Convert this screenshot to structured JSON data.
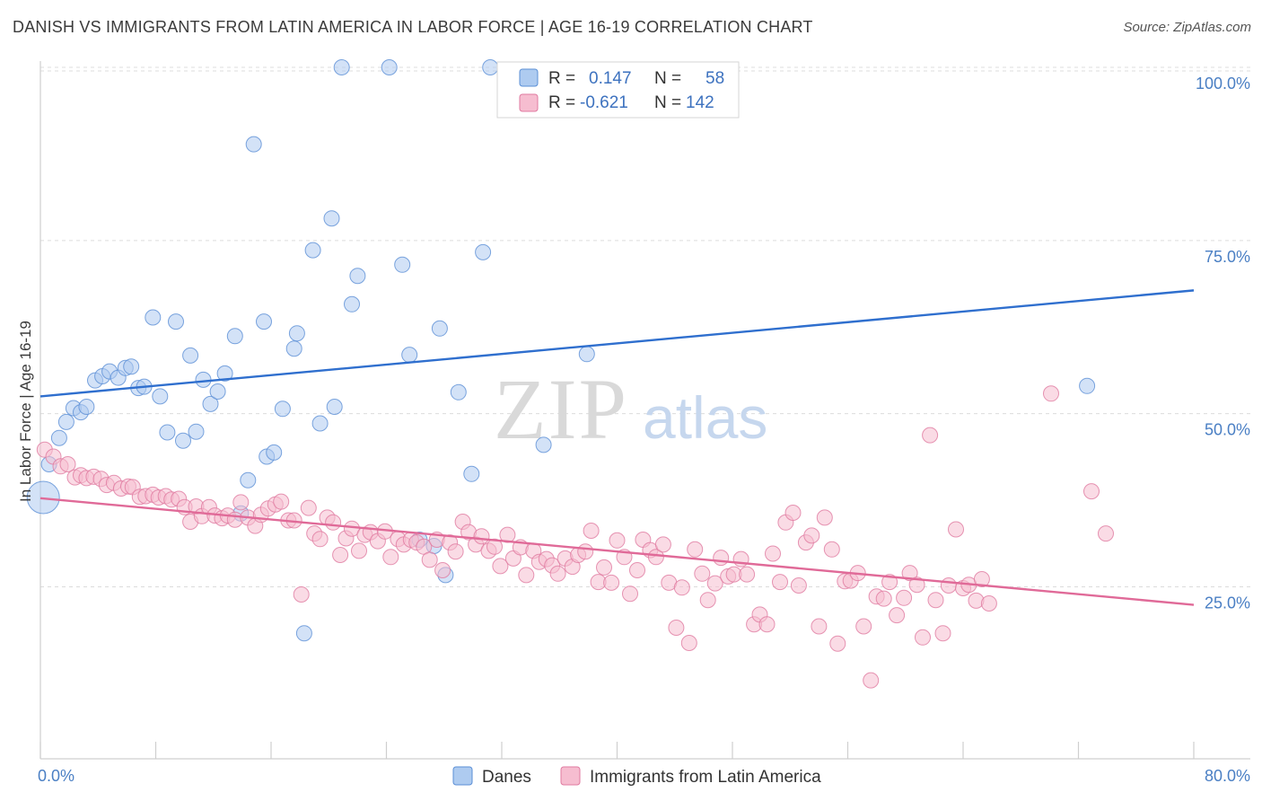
{
  "title": "DANISH VS IMMIGRANTS FROM LATIN AMERICA IN LABOR FORCE | AGE 16-19 CORRELATION CHART",
  "source": "Source: ZipAtlas.com",
  "watermark": {
    "part1": "ZIP",
    "part2": "atlas"
  },
  "legend": {
    "r_label": "R =",
    "n_label": "N =",
    "items": [
      {
        "r": "0.147",
        "n": "58",
        "color": "#5b8fd6",
        "fill": "#aecbf0"
      },
      {
        "r": "-0.621",
        "n": "142",
        "color": "#e07aa0",
        "fill": "#f6bdd0"
      }
    ]
  },
  "bottom_legend": [
    "Danes",
    "Immigrants from Latin America"
  ],
  "chart_data": {
    "type": "scatter",
    "title": "DANISH VS IMMIGRANTS FROM LATIN AMERICA IN LABOR FORCE | AGE 16-19 CORRELATION CHART",
    "xlabel": "",
    "ylabel": "In Labor Force | Age 16-19",
    "xlim": [
      0,
      80
    ],
    "ylim": [
      0,
      105
    ],
    "x_tick_labels": [
      "0.0%",
      "80.0%"
    ],
    "y_ticks": [
      25,
      50,
      75,
      100
    ],
    "y_tick_labels": [
      "25.0%",
      "50.0%",
      "75.0%",
      "100.0%"
    ],
    "grid": true,
    "legend_position": "top-center",
    "series": [
      {
        "name": "Danes",
        "color": "#5b8fd6",
        "fill": "#aecbf0",
        "trend": {
          "x": [
            0,
            80
          ],
          "y": [
            52.5,
            67.8
          ]
        },
        "points": [
          {
            "x": 0.2,
            "y": 37.9,
            "big": true
          },
          {
            "x": 0.6,
            "y": 42.7
          },
          {
            "x": 1.3,
            "y": 46.5
          },
          {
            "x": 1.8,
            "y": 48.8
          },
          {
            "x": 2.3,
            "y": 50.8
          },
          {
            "x": 2.8,
            "y": 50.2
          },
          {
            "x": 3.2,
            "y": 51.0
          },
          {
            "x": 3.8,
            "y": 54.8
          },
          {
            "x": 4.3,
            "y": 55.4
          },
          {
            "x": 4.8,
            "y": 56.1
          },
          {
            "x": 5.4,
            "y": 55.2
          },
          {
            "x": 5.9,
            "y": 56.6
          },
          {
            "x": 6.3,
            "y": 56.8
          },
          {
            "x": 6.8,
            "y": 53.7
          },
          {
            "x": 7.2,
            "y": 53.9
          },
          {
            "x": 7.8,
            "y": 63.9
          },
          {
            "x": 8.3,
            "y": 52.5
          },
          {
            "x": 8.8,
            "y": 47.3
          },
          {
            "x": 9.4,
            "y": 63.3
          },
          {
            "x": 9.9,
            "y": 46.1
          },
          {
            "x": 10.4,
            "y": 58.4
          },
          {
            "x": 10.8,
            "y": 47.4
          },
          {
            "x": 11.3,
            "y": 54.9
          },
          {
            "x": 11.8,
            "y": 51.4
          },
          {
            "x": 12.3,
            "y": 53.2
          },
          {
            "x": 12.8,
            "y": 55.8
          },
          {
            "x": 13.5,
            "y": 61.2
          },
          {
            "x": 13.9,
            "y": 35.6
          },
          {
            "x": 14.4,
            "y": 40.4
          },
          {
            "x": 14.8,
            "y": 88.9
          },
          {
            "x": 15.5,
            "y": 63.3
          },
          {
            "x": 15.7,
            "y": 43.8
          },
          {
            "x": 16.2,
            "y": 44.4
          },
          {
            "x": 16.8,
            "y": 50.7
          },
          {
            "x": 17.6,
            "y": 59.4
          },
          {
            "x": 17.8,
            "y": 61.6
          },
          {
            "x": 18.3,
            "y": 18.3
          },
          {
            "x": 18.9,
            "y": 73.6
          },
          {
            "x": 19.4,
            "y": 48.6
          },
          {
            "x": 20.2,
            "y": 78.2
          },
          {
            "x": 20.4,
            "y": 51.0
          },
          {
            "x": 20.9,
            "y": 100.0
          },
          {
            "x": 21.6,
            "y": 65.8
          },
          {
            "x": 22.0,
            "y": 69.9
          },
          {
            "x": 24.2,
            "y": 100.0
          },
          {
            "x": 25.1,
            "y": 71.5
          },
          {
            "x": 25.6,
            "y": 58.5
          },
          {
            "x": 26.3,
            "y": 31.8
          },
          {
            "x": 27.3,
            "y": 30.9
          },
          {
            "x": 27.7,
            "y": 62.3
          },
          {
            "x": 28.1,
            "y": 26.7
          },
          {
            "x": 29.0,
            "y": 53.1
          },
          {
            "x": 29.9,
            "y": 41.3
          },
          {
            "x": 30.7,
            "y": 73.3
          },
          {
            "x": 31.2,
            "y": 100.0
          },
          {
            "x": 34.9,
            "y": 45.5
          },
          {
            "x": 37.9,
            "y": 58.6
          },
          {
            "x": 72.6,
            "y": 54.0
          }
        ]
      },
      {
        "name": "Immigrants from Latin America",
        "color": "#e07aa0",
        "fill": "#f6bdd0",
        "trend": {
          "x": [
            0,
            80
          ],
          "y": [
            37.8,
            22.4
          ]
        },
        "points": [
          {
            "x": 0.3,
            "y": 44.8
          },
          {
            "x": 0.9,
            "y": 43.8
          },
          {
            "x": 1.4,
            "y": 42.4
          },
          {
            "x": 1.9,
            "y": 42.7
          },
          {
            "x": 2.4,
            "y": 40.8
          },
          {
            "x": 2.8,
            "y": 41.1
          },
          {
            "x": 3.2,
            "y": 40.7
          },
          {
            "x": 3.7,
            "y": 40.9
          },
          {
            "x": 4.2,
            "y": 40.6
          },
          {
            "x": 4.6,
            "y": 39.7
          },
          {
            "x": 5.1,
            "y": 40.0
          },
          {
            "x": 5.6,
            "y": 39.2
          },
          {
            "x": 6.1,
            "y": 39.5
          },
          {
            "x": 6.4,
            "y": 39.4
          },
          {
            "x": 6.9,
            "y": 38.0
          },
          {
            "x": 7.3,
            "y": 38.1
          },
          {
            "x": 7.8,
            "y": 38.3
          },
          {
            "x": 8.2,
            "y": 37.9
          },
          {
            "x": 8.7,
            "y": 38.1
          },
          {
            "x": 9.1,
            "y": 37.6
          },
          {
            "x": 9.6,
            "y": 37.7
          },
          {
            "x": 10.0,
            "y": 36.5
          },
          {
            "x": 10.4,
            "y": 34.4
          },
          {
            "x": 10.8,
            "y": 36.6
          },
          {
            "x": 11.2,
            "y": 35.2
          },
          {
            "x": 11.7,
            "y": 36.5
          },
          {
            "x": 12.1,
            "y": 35.3
          },
          {
            "x": 12.6,
            "y": 34.9
          },
          {
            "x": 13.0,
            "y": 35.3
          },
          {
            "x": 13.5,
            "y": 34.7
          },
          {
            "x": 13.9,
            "y": 37.2
          },
          {
            "x": 14.4,
            "y": 35.0
          },
          {
            "x": 14.9,
            "y": 33.8
          },
          {
            "x": 15.3,
            "y": 35.4
          },
          {
            "x": 15.8,
            "y": 36.3
          },
          {
            "x": 16.3,
            "y": 36.9
          },
          {
            "x": 16.7,
            "y": 37.3
          },
          {
            "x": 17.2,
            "y": 34.6
          },
          {
            "x": 17.6,
            "y": 34.6
          },
          {
            "x": 18.1,
            "y": 23.9
          },
          {
            "x": 18.6,
            "y": 36.4
          },
          {
            "x": 19.0,
            "y": 32.7
          },
          {
            "x": 19.4,
            "y": 31.9
          },
          {
            "x": 19.9,
            "y": 35.0
          },
          {
            "x": 20.3,
            "y": 34.3
          },
          {
            "x": 20.8,
            "y": 29.6
          },
          {
            "x": 21.2,
            "y": 32.0
          },
          {
            "x": 21.6,
            "y": 33.4
          },
          {
            "x": 22.1,
            "y": 30.2
          },
          {
            "x": 22.5,
            "y": 32.5
          },
          {
            "x": 22.9,
            "y": 32.9
          },
          {
            "x": 23.4,
            "y": 31.6
          },
          {
            "x": 23.9,
            "y": 33.0
          },
          {
            "x": 24.3,
            "y": 29.3
          },
          {
            "x": 24.8,
            "y": 31.9
          },
          {
            "x": 25.2,
            "y": 31.1
          },
          {
            "x": 25.7,
            "y": 31.8
          },
          {
            "x": 26.1,
            "y": 31.4
          },
          {
            "x": 26.6,
            "y": 30.8
          },
          {
            "x": 27.0,
            "y": 28.9
          },
          {
            "x": 27.5,
            "y": 31.8
          },
          {
            "x": 27.9,
            "y": 27.4
          },
          {
            "x": 28.4,
            "y": 31.4
          },
          {
            "x": 28.8,
            "y": 30.1
          },
          {
            "x": 29.3,
            "y": 34.4
          },
          {
            "x": 29.7,
            "y": 32.9
          },
          {
            "x": 30.2,
            "y": 31.1
          },
          {
            "x": 30.6,
            "y": 32.3
          },
          {
            "x": 31.1,
            "y": 30.2
          },
          {
            "x": 31.5,
            "y": 30.8
          },
          {
            "x": 31.9,
            "y": 28.0
          },
          {
            "x": 32.4,
            "y": 32.5
          },
          {
            "x": 32.8,
            "y": 29.1
          },
          {
            "x": 33.3,
            "y": 30.7
          },
          {
            "x": 33.7,
            "y": 26.7
          },
          {
            "x": 34.2,
            "y": 30.2
          },
          {
            "x": 34.6,
            "y": 28.6
          },
          {
            "x": 35.1,
            "y": 29.0
          },
          {
            "x": 35.5,
            "y": 28.1
          },
          {
            "x": 35.9,
            "y": 26.9
          },
          {
            "x": 36.4,
            "y": 29.1
          },
          {
            "x": 36.9,
            "y": 27.9
          },
          {
            "x": 37.3,
            "y": 29.6
          },
          {
            "x": 37.8,
            "y": 30.1
          },
          {
            "x": 38.2,
            "y": 33.1
          },
          {
            "x": 38.7,
            "y": 25.7
          },
          {
            "x": 39.1,
            "y": 27.8
          },
          {
            "x": 39.6,
            "y": 25.6
          },
          {
            "x": 40.0,
            "y": 31.7
          },
          {
            "x": 40.5,
            "y": 29.3
          },
          {
            "x": 40.9,
            "y": 24.0
          },
          {
            "x": 41.4,
            "y": 27.4
          },
          {
            "x": 41.8,
            "y": 31.8
          },
          {
            "x": 42.3,
            "y": 30.3
          },
          {
            "x": 42.7,
            "y": 29.3
          },
          {
            "x": 43.2,
            "y": 31.1
          },
          {
            "x": 43.6,
            "y": 25.6
          },
          {
            "x": 44.1,
            "y": 19.1
          },
          {
            "x": 44.5,
            "y": 24.9
          },
          {
            "x": 45.0,
            "y": 16.9
          },
          {
            "x": 45.4,
            "y": 30.4
          },
          {
            "x": 45.9,
            "y": 26.9
          },
          {
            "x": 46.3,
            "y": 23.1
          },
          {
            "x": 46.8,
            "y": 25.5
          },
          {
            "x": 47.2,
            "y": 29.2
          },
          {
            "x": 47.7,
            "y": 26.5
          },
          {
            "x": 48.1,
            "y": 26.8
          },
          {
            "x": 48.6,
            "y": 29.0
          },
          {
            "x": 49.0,
            "y": 26.8
          },
          {
            "x": 49.5,
            "y": 19.6
          },
          {
            "x": 49.9,
            "y": 21.0
          },
          {
            "x": 50.4,
            "y": 19.6
          },
          {
            "x": 50.8,
            "y": 29.8
          },
          {
            "x": 51.3,
            "y": 25.7
          },
          {
            "x": 51.7,
            "y": 34.3
          },
          {
            "x": 52.2,
            "y": 35.7
          },
          {
            "x": 52.6,
            "y": 25.2
          },
          {
            "x": 53.1,
            "y": 31.4
          },
          {
            "x": 53.5,
            "y": 32.4
          },
          {
            "x": 54.0,
            "y": 19.3
          },
          {
            "x": 54.4,
            "y": 35.0
          },
          {
            "x": 54.9,
            "y": 30.4
          },
          {
            "x": 55.3,
            "y": 16.8
          },
          {
            "x": 55.8,
            "y": 25.8
          },
          {
            "x": 56.2,
            "y": 25.9
          },
          {
            "x": 56.7,
            "y": 27.0
          },
          {
            "x": 57.1,
            "y": 19.3
          },
          {
            "x": 57.6,
            "y": 11.5
          },
          {
            "x": 58.0,
            "y": 23.6
          },
          {
            "x": 58.5,
            "y": 23.3
          },
          {
            "x": 58.9,
            "y": 25.7
          },
          {
            "x": 59.4,
            "y": 20.9
          },
          {
            "x": 59.9,
            "y": 23.4
          },
          {
            "x": 60.3,
            "y": 27.0
          },
          {
            "x": 60.8,
            "y": 25.3
          },
          {
            "x": 61.2,
            "y": 17.7
          },
          {
            "x": 61.7,
            "y": 46.9
          },
          {
            "x": 62.1,
            "y": 23.1
          },
          {
            "x": 62.6,
            "y": 18.3
          },
          {
            "x": 63.0,
            "y": 25.2
          },
          {
            "x": 63.5,
            "y": 33.3
          },
          {
            "x": 64.0,
            "y": 24.8
          },
          {
            "x": 64.4,
            "y": 25.3
          },
          {
            "x": 64.9,
            "y": 23.0
          },
          {
            "x": 65.3,
            "y": 26.1
          },
          {
            "x": 65.8,
            "y": 22.6
          },
          {
            "x": 70.1,
            "y": 52.9
          },
          {
            "x": 72.9,
            "y": 38.8
          },
          {
            "x": 73.9,
            "y": 32.7
          }
        ]
      }
    ]
  }
}
